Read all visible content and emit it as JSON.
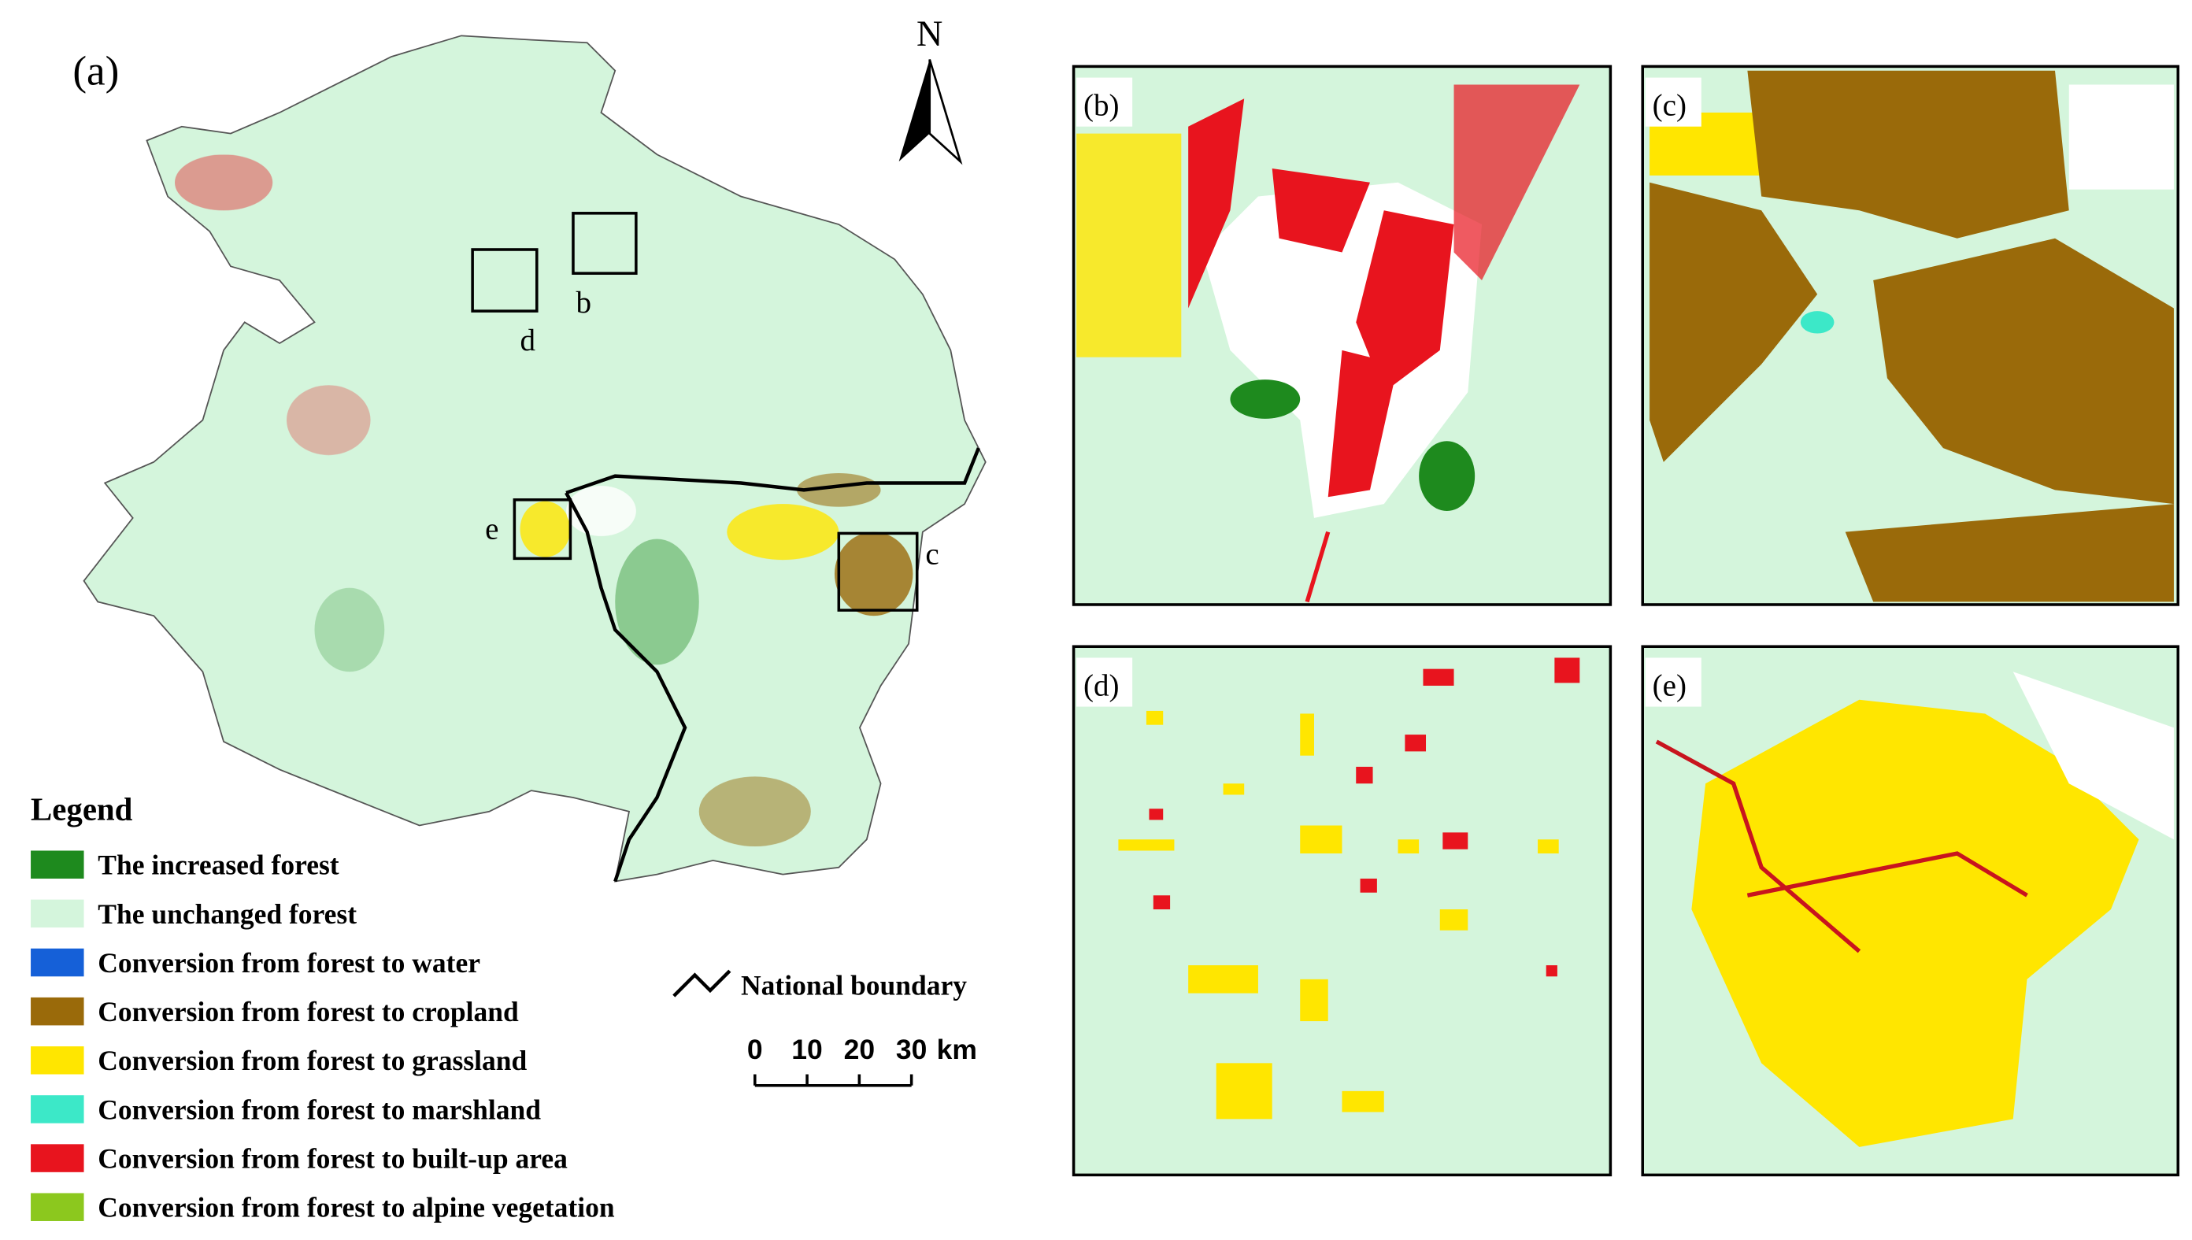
{
  "panel_labels": {
    "a": "(a)",
    "b": "(b)",
    "c": "(c)",
    "d": "(d)",
    "e": "(e)"
  },
  "north": "N",
  "boxes": [
    "b",
    "c",
    "d",
    "e"
  ],
  "legend": {
    "title": "Legend",
    "items": [
      {
        "label": "The increased forest",
        "color": "#1e8a1e"
      },
      {
        "label": "The unchanged forest",
        "color": "#d4f5dc"
      },
      {
        "label": "Conversion from forest to water",
        "color": "#1560d8"
      },
      {
        "label": "Conversion from forest to cropland",
        "color": "#9a6a0a"
      },
      {
        "label": "Conversion from forest to grassland",
        "color": "#ffe600"
      },
      {
        "label": "Conversion from forest to marshland",
        "color": "#3ce8c8"
      },
      {
        "label": "Conversion from forest to built-up area",
        "color": "#e8141e"
      },
      {
        "label": "Conversion from forest to alpine vegetation",
        "color": "#8cc81e"
      }
    ],
    "boundary": "National boundary"
  },
  "scale_bar": {
    "ticks": [
      0,
      10,
      20,
      30
    ],
    "unit": "km"
  }
}
